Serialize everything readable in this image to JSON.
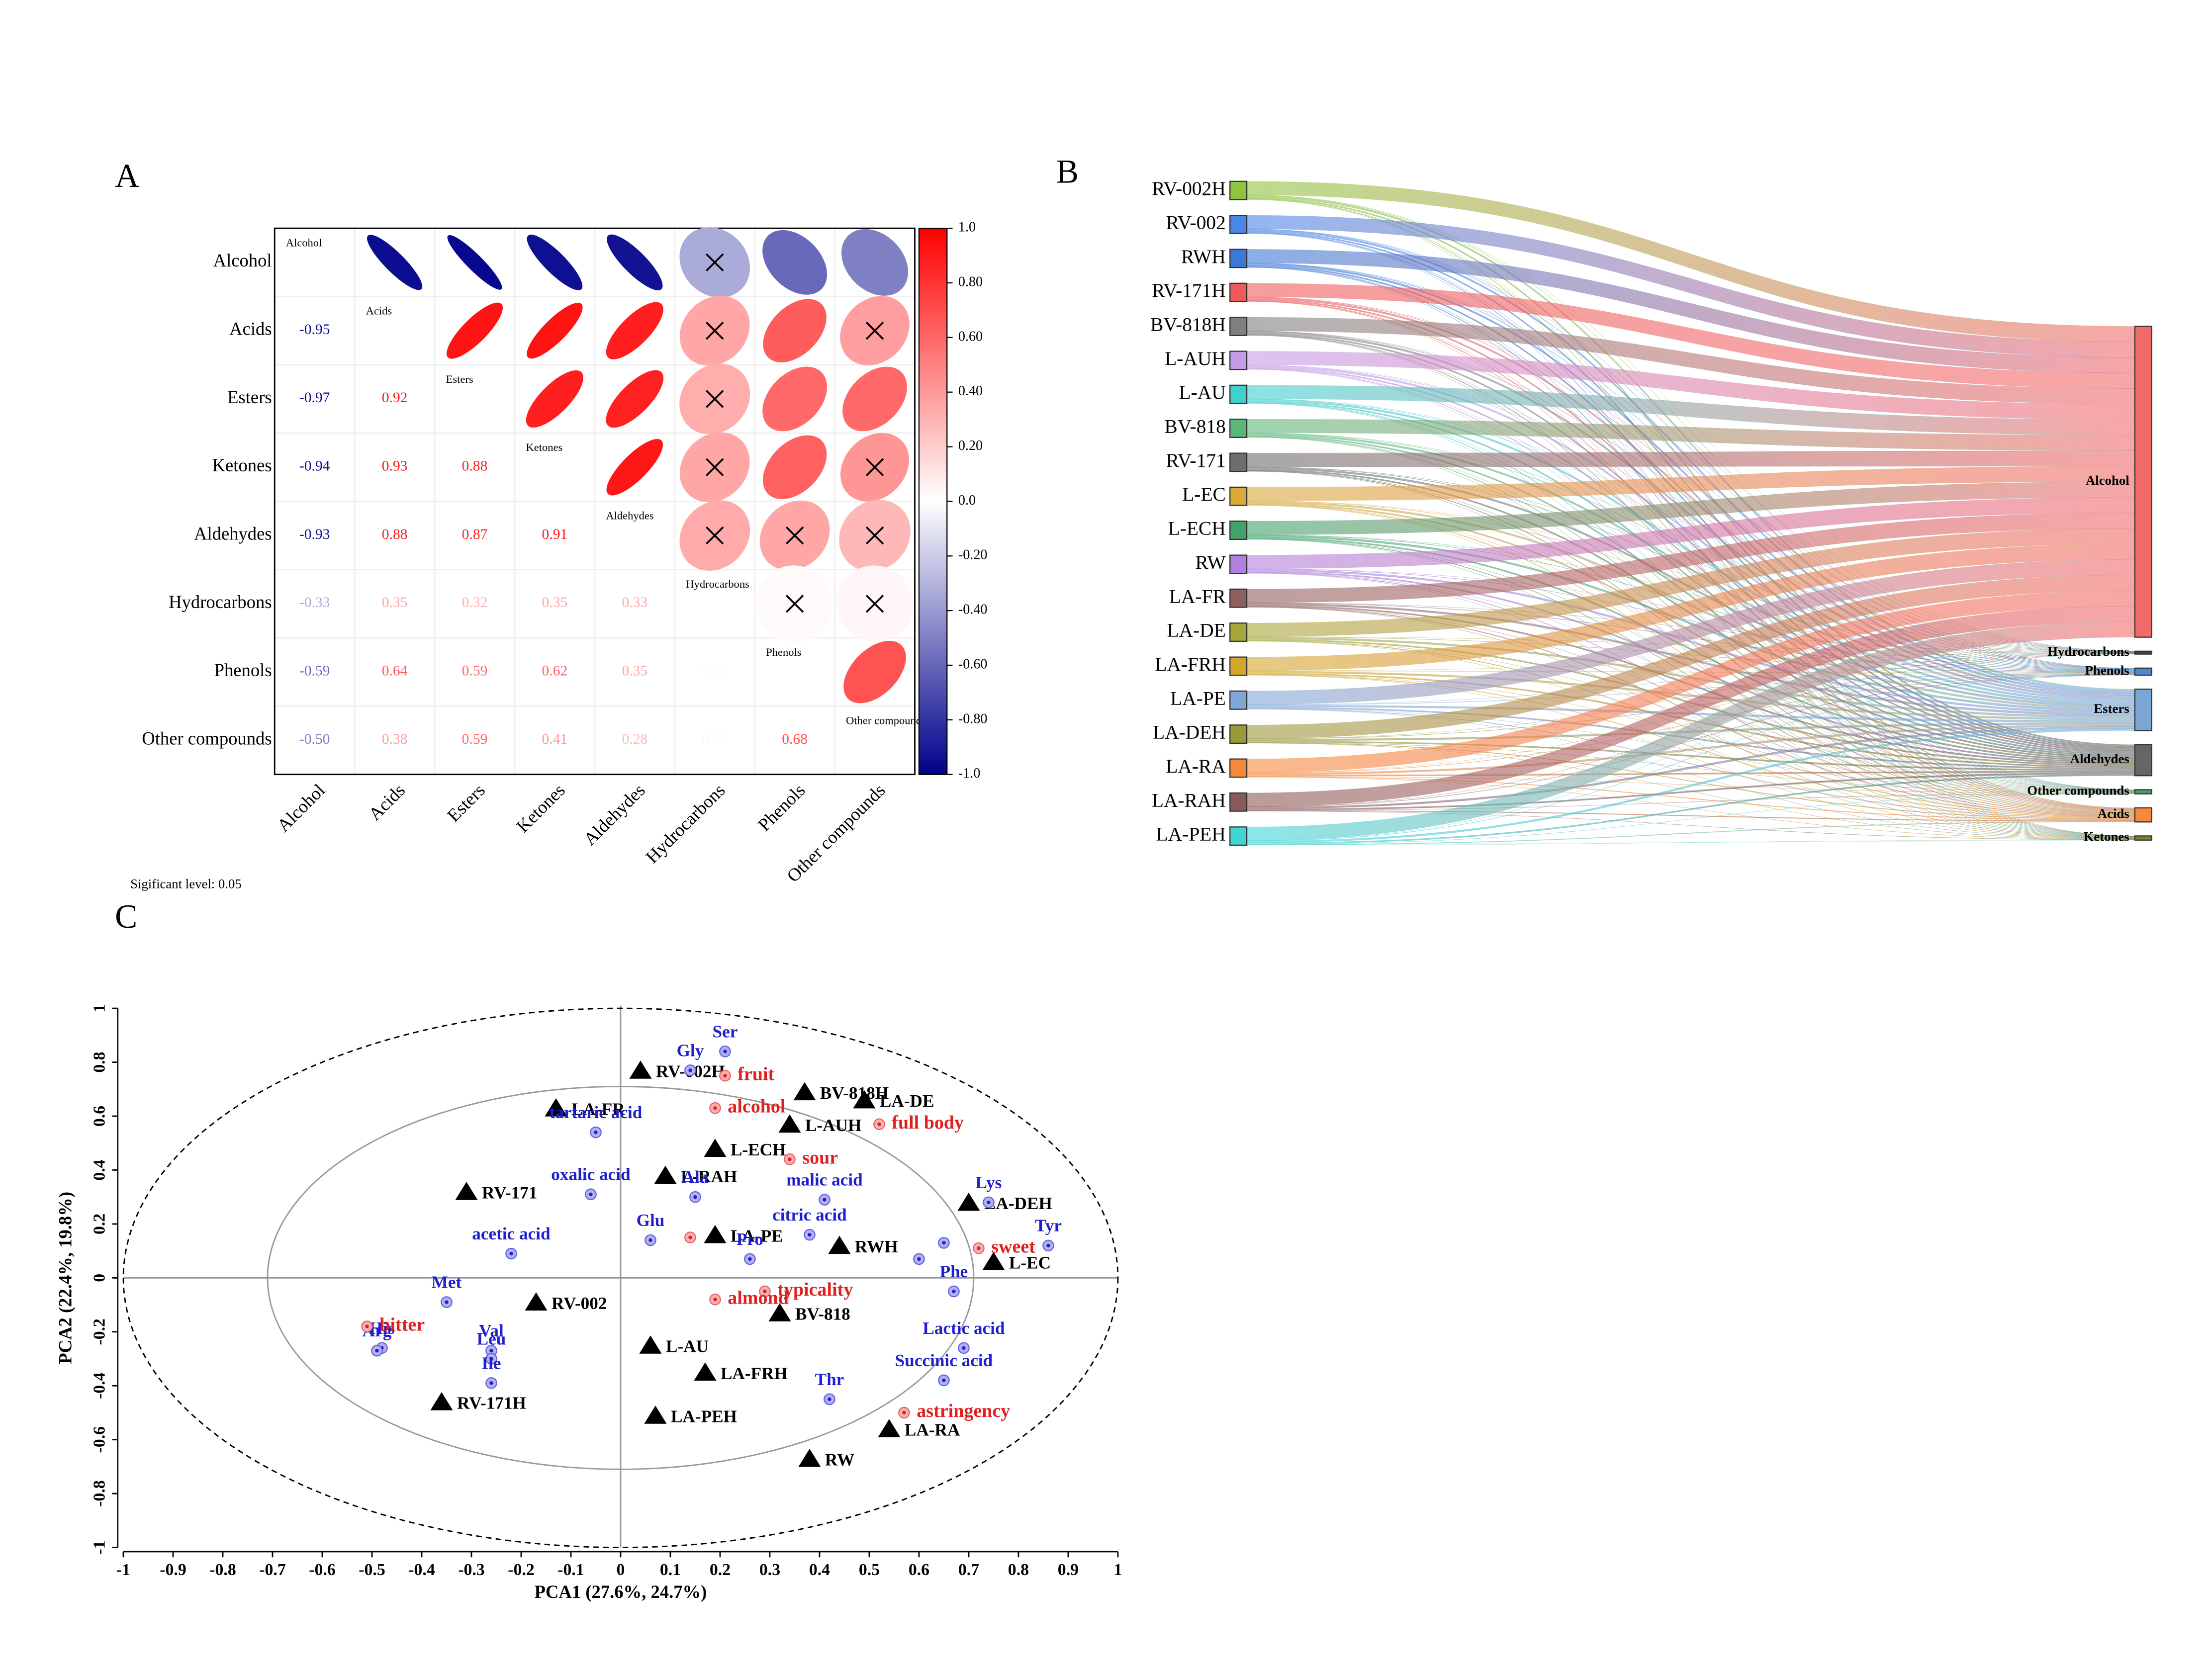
{
  "chart_data": [
    {
      "type": "correlation",
      "panel_label": "A",
      "variables": [
        "Alcohol",
        "Acids",
        "Esters",
        "Ketones",
        "Aldehydes",
        "Hydrocarbons",
        "Phenols",
        "Other compounds"
      ],
      "values": [
        [
          -0.95
        ],
        [
          -0.97,
          0.92
        ],
        [
          -0.94,
          0.93,
          0.88
        ],
        [
          -0.93,
          0.88,
          0.87,
          0.91
        ],
        [
          -0.33,
          0.35,
          0.32,
          0.35,
          0.33
        ],
        [
          -0.59,
          0.64,
          0.59,
          0.62,
          0.35,
          0.02
        ],
        [
          -0.5,
          0.38,
          0.59,
          0.41,
          0.28,
          0.03,
          0.68
        ]
      ],
      "value_labels": [
        [
          "-0.95"
        ],
        [
          "-0.97",
          "0.92"
        ],
        [
          "-0.94",
          "0.93",
          "0.88"
        ],
        [
          "-0.93",
          "0.88",
          "0.87",
          "0.91"
        ],
        [
          "-0.33",
          "0.35",
          "0.32",
          "0.35",
          "0.33"
        ],
        [
          "-0.59",
          "0.64",
          "0.59",
          "0.62",
          "0.35",
          "0.02"
        ],
        [
          "-0.50",
          "0.38",
          "0.59",
          "0.41",
          "0.28",
          "0.03",
          "0.68"
        ]
      ],
      "significant": [
        [
          true
        ],
        [
          true,
          true
        ],
        [
          true,
          true,
          true
        ],
        [
          true,
          true,
          true,
          true
        ],
        [
          false,
          false,
          false,
          false,
          false
        ],
        [
          true,
          true,
          true,
          true,
          false,
          false
        ],
        [
          true,
          false,
          true,
          false,
          false,
          false,
          true
        ]
      ],
      "colorbar_lim": [
        -1,
        1
      ],
      "colorbar_ticks": [
        {
          "value": 1,
          "label": "1.0"
        },
        {
          "value": 0.8,
          "label": "0.80"
        },
        {
          "value": 0.6,
          "label": "0.60"
        },
        {
          "value": 0.4,
          "label": "0.40"
        },
        {
          "value": 0.2,
          "label": "0.20"
        },
        {
          "value": 0,
          "label": "0.0"
        },
        {
          "value": -0.2,
          "label": "-0.20"
        },
        {
          "value": -0.4,
          "label": "-0.40"
        },
        {
          "value": -0.6,
          "label": "-0.60"
        },
        {
          "value": -0.8,
          "label": "-0.80"
        },
        {
          "value": -1,
          "label": "-1.0"
        }
      ],
      "caption": "Sigificant level: 0.05"
    },
    {
      "type": "sankey",
      "panel_label": "B",
      "sources": [
        "RV-002H",
        "RV-002",
        "RWH",
        "RV-171H",
        "BV-818H",
        "L-AUH",
        "L-AU",
        "BV-818",
        "RV-171",
        "L-EC",
        "L-ECH",
        "RW",
        "LA-FR",
        "LA-DE",
        "LA-FRH",
        "LA-PE",
        "LA-DEH",
        "LA-RA",
        "LA-RAH",
        "LA-PEH"
      ],
      "source_colors": [
        "#8fc43f",
        "#4a86e8",
        "#3b79d8",
        "#ef5b5b",
        "#7f7f7f",
        "#c59be8",
        "#3fd0d0",
        "#5cb87a",
        "#6e6e6e",
        "#d9a93a",
        "#3fa36a",
        "#b07fe0",
        "#8f5f5f",
        "#a8a83a",
        "#d4a72c",
        "#7fa8d8",
        "#9a9a3a",
        "#f58a3c",
        "#8a5a5a",
        "#3fd6d6"
      ],
      "targets": [
        "Alcohol",
        "Hydrocarbons",
        "Phenols",
        "Esters",
        "Aldehydes",
        "Other compounds",
        "Acids",
        "Ketones"
      ],
      "target_colors": [
        "#f26b6b",
        "#444444",
        "#4f86d6",
        "#7aa6d6",
        "#666666",
        "#4a9e6a",
        "#f58a3c",
        "#6a8f2a"
      ],
      "target_values": [
        75,
        0.7,
        1.7,
        10,
        7.5,
        1,
        3.4,
        1
      ]
    },
    {
      "type": "scatter",
      "panel_label": "C",
      "xlabel": "PCA1 (27.6%, 24.7%)",
      "ylabel": "PCA2 (22.4%, 19.8%)",
      "xlim": [
        -1,
        1
      ],
      "ylim": [
        -1,
        1
      ],
      "xticks": [
        -1,
        -0.9,
        -0.8,
        -0.7,
        -0.6,
        -0.5,
        -0.4,
        -0.3,
        -0.2,
        -0.1,
        0,
        0.1,
        0.2,
        0.3,
        0.4,
        0.5,
        0.6,
        0.7,
        0.8,
        0.9,
        1
      ],
      "yticks": [
        -1,
        -0.8,
        -0.6,
        -0.4,
        -0.2,
        0,
        0.2,
        0.4,
        0.6,
        0.8,
        1
      ],
      "radii": [
        1,
        0.71
      ],
      "series": [
        {
          "marker": "triangle",
          "color": "#000000",
          "labels": [
            "RV-002H",
            "LA-FR",
            "RV-171",
            "L-RAH",
            "L-AUH",
            "L-ECH",
            "BV-818H",
            "LA-DE",
            "LA-DEH",
            "LA-PE",
            "RWH",
            "L-EC",
            "RV-002",
            "BV-818",
            "L-AU",
            "LA-FRH",
            "RV-171H",
            "LA-PEH",
            "LA-RA",
            "RW"
          ],
          "x": [
            0.04,
            -0.13,
            -0.31,
            0.09,
            0.34,
            0.19,
            0.37,
            0.49,
            0.7,
            0.19,
            0.44,
            0.75,
            -0.17,
            0.32,
            0.06,
            0.17,
            -0.36,
            0.07,
            0.54,
            0.38
          ],
          "values": [
            0.77,
            0.63,
            0.32,
            0.38,
            0.57,
            0.48,
            0.69,
            0.66,
            0.28,
            0.16,
            0.12,
            0.06,
            -0.09,
            -0.13,
            -0.25,
            -0.35,
            -0.46,
            -0.51,
            -0.56,
            -0.67
          ]
        },
        {
          "marker": "dot",
          "color": "#1f1fd0",
          "labels": [
            "Gly",
            "Ser",
            "tartaric acid",
            "oxalic acid",
            "Ala",
            "malic acid",
            "Glu",
            "citric acid",
            "Pro",
            "acetic acid",
            "Lys",
            "Tyr",
            "Phe",
            null,
            null,
            "Met",
            "His",
            "Val",
            "Leu",
            "Ile",
            "Arg",
            "Lactic acid",
            "Succinic acid",
            "Thr"
          ],
          "x": [
            0.14,
            0.21,
            -0.05,
            -0.06,
            0.15,
            0.41,
            0.06,
            0.38,
            0.26,
            -0.22,
            0.74,
            0.86,
            0.67,
            0.6,
            0.65,
            -0.35,
            -0.48,
            -0.26,
            -0.26,
            -0.26,
            -0.49,
            0.69,
            0.65,
            0.42
          ],
          "values": [
            0.77,
            0.84,
            0.54,
            0.31,
            0.3,
            0.29,
            0.14,
            0.16,
            0.07,
            0.09,
            0.28,
            0.12,
            -0.05,
            0.07,
            0.13,
            -0.09,
            -0.26,
            -0.27,
            -0.3,
            -0.39,
            -0.27,
            -0.26,
            -0.38,
            -0.45
          ]
        },
        {
          "marker": "dot",
          "color": "#e02020",
          "labels": [
            "fruit",
            "alcohol",
            "full body",
            "sour",
            "sweet",
            "typicality",
            "almond",
            "bitter",
            "astringency",
            null
          ],
          "x": [
            0.21,
            0.19,
            0.52,
            0.34,
            0.72,
            0.29,
            0.19,
            -0.51,
            0.57,
            0.14
          ],
          "values": [
            0.75,
            0.63,
            0.57,
            0.44,
            0.11,
            -0.05,
            -0.08,
            -0.18,
            -0.5,
            0.15
          ]
        }
      ]
    }
  ]
}
